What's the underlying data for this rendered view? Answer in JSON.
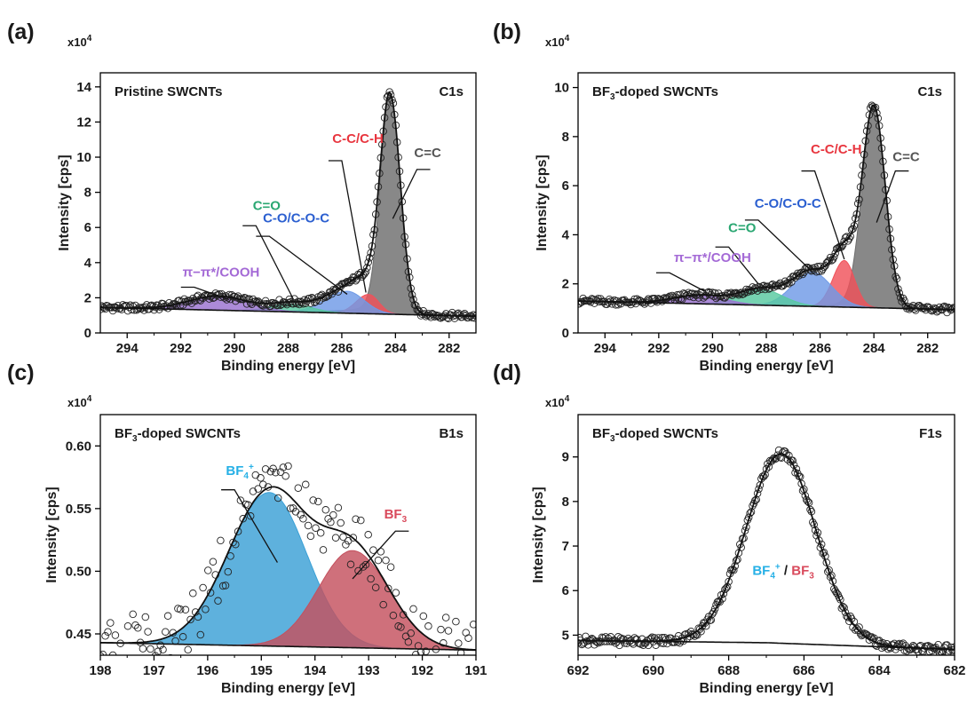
{
  "chart_data": [
    {
      "panel": "(a)",
      "type": "line",
      "subtype": "xps_fit",
      "sample": "Pristine SWCNTs",
      "core_level": "C1s",
      "xlabel": "Binding energy [eV]",
      "ylabel": "Intensity [cps]",
      "y_multiplier": "x10",
      "y_multiplier_exp": "4",
      "x_range": [
        295,
        281
      ],
      "x_reversed": true,
      "y_range": [
        0,
        14.8
      ],
      "x_ticks": [
        294,
        292,
        290,
        288,
        286,
        284,
        282
      ],
      "y_ticks": [
        0,
        2,
        4,
        6,
        8,
        10,
        12,
        14
      ],
      "baseline": [
        [
          295,
          1.45
        ],
        [
          281,
          0.95
        ]
      ],
      "peaks": [
        {
          "name": "C=C",
          "label_parts": [
            [
              "C=C",
              ""
            ]
          ],
          "center": 284.2,
          "height": 12.4,
          "wl": 0.42,
          "wr": 0.45,
          "tail": 1.3,
          "color": "#6e6e6e",
          "label_color": "#555555",
          "label_at": [
            282.8,
            10.0
          ],
          "line_from": [
            283.2,
            9.3
          ],
          "line_to": [
            284.1,
            6.5
          ]
        },
        {
          "name": "C-C/C-H",
          "label_parts": [
            [
              "C-C/C-H",
              ""
            ]
          ],
          "center": 285.0,
          "height": 1.1,
          "wl": 0.55,
          "wr": 0.45,
          "tail": 0,
          "color": "#f0525a",
          "label_color": "#e8363f",
          "label_at": [
            285.4,
            10.8
          ],
          "line_from": [
            286.0,
            9.8
          ],
          "line_to": [
            285.1,
            2.3
          ]
        },
        {
          "name": "C-O/C-O-C",
          "label_parts": [
            [
              "C-O/C-O-C",
              ""
            ]
          ],
          "center": 285.8,
          "height": 1.25,
          "wl": 0.95,
          "wr": 0.75,
          "tail": 0,
          "color": "#6f9ae6",
          "label_color": "#2b5fd0",
          "label_at": [
            287.7,
            6.3
          ],
          "line_from": [
            288.7,
            5.5
          ],
          "line_to": [
            285.8,
            2.2
          ]
        },
        {
          "name": "C=O",
          "label_parts": [
            [
              "C=O",
              ""
            ]
          ],
          "center": 287.9,
          "height": 0.45,
          "wl": 0.9,
          "wr": 0.9,
          "tail": 0,
          "color": "#58c9a0",
          "label_color": "#2aa772",
          "label_at": [
            288.8,
            7.0
          ],
          "line_from": [
            289.2,
            6.1
          ],
          "line_to": [
            287.8,
            1.9
          ]
        },
        {
          "name": "π−π*/COOH",
          "label_parts": [
            [
              "π−π*/",
              ""
            ],
            [
              "COOH",
              ""
            ]
          ],
          "center": 290.6,
          "height": 0.8,
          "wl": 1.3,
          "wr": 1.3,
          "tail": 0,
          "color": "#9a72cf",
          "label_color": "#a46ad6",
          "label_at": [
            290.5,
            3.2
          ],
          "line_from": [
            291.5,
            2.6
          ],
          "line_to": [
            290.2,
            1.9
          ]
        }
      ]
    },
    {
      "panel": "(b)",
      "type": "line",
      "subtype": "xps_fit",
      "sample": "BF3-doped SWCNTs",
      "sample_parts": [
        [
          "BF",
          ""
        ],
        [
          "3",
          "sub"
        ],
        [
          "-doped SWCNTs",
          ""
        ]
      ],
      "core_level": "C1s",
      "xlabel": "Binding energy [eV]",
      "ylabel": "Intensity [cps]",
      "y_multiplier": "x10",
      "y_multiplier_exp": "4",
      "x_range": [
        295,
        281
      ],
      "x_reversed": true,
      "y_range": [
        0,
        10.6
      ],
      "x_ticks": [
        294,
        292,
        290,
        288,
        286,
        284,
        282
      ],
      "y_ticks": [
        0,
        2,
        4,
        6,
        8,
        10
      ],
      "baseline": [
        [
          295,
          1.3
        ],
        [
          281,
          0.95
        ]
      ],
      "peaks": [
        {
          "name": "C=C",
          "label_parts": [
            [
              "C=C",
              ""
            ]
          ],
          "center": 284.0,
          "height": 8.2,
          "wl": 0.5,
          "wr": 0.5,
          "tail": 1.0,
          "color": "#6e6e6e",
          "label_color": "#555555",
          "label_at": [
            282.8,
            7.0
          ],
          "line_from": [
            283.2,
            6.6
          ],
          "line_to": [
            283.9,
            4.5
          ]
        },
        {
          "name": "C-C/C-H",
          "label_parts": [
            [
              "C-C/C-H",
              ""
            ]
          ],
          "center": 285.1,
          "height": 1.9,
          "wl": 0.5,
          "wr": 0.45,
          "tail": 0,
          "color": "#f0525a",
          "label_color": "#e8363f",
          "label_at": [
            285.4,
            7.3
          ],
          "line_from": [
            286.2,
            6.6
          ],
          "line_to": [
            285.1,
            3.0
          ]
        },
        {
          "name": "C-O/C-O-C",
          "label_parts": [
            [
              "C-O/C-O-C",
              ""
            ]
          ],
          "center": 286.3,
          "height": 1.4,
          "wl": 0.85,
          "wr": 0.85,
          "tail": 0,
          "color": "#6f9ae6",
          "label_color": "#2b5fd0",
          "label_at": [
            287.2,
            5.1
          ],
          "line_from": [
            288.3,
            4.6
          ],
          "line_to": [
            286.3,
            2.5
          ]
        },
        {
          "name": "C=O",
          "label_parts": [
            [
              "C=O",
              ""
            ]
          ],
          "center": 288.2,
          "height": 0.65,
          "wl": 0.95,
          "wr": 0.95,
          "tail": 0,
          "color": "#58c9a0",
          "label_color": "#2aa772",
          "label_at": [
            288.9,
            4.1
          ],
          "line_from": [
            289.4,
            3.5
          ],
          "line_to": [
            288.3,
            2.0
          ]
        },
        {
          "name": "π−π*/COOH",
          "label_parts": [
            [
              "π−π*/",
              ""
            ],
            [
              "COOH",
              ""
            ]
          ],
          "center": 290.5,
          "height": 0.35,
          "wl": 1.1,
          "wr": 1.1,
          "tail": 0,
          "color": "#9a72cf",
          "label_color": "#a46ad6",
          "label_at": [
            290.0,
            2.9
          ],
          "line_from": [
            291.6,
            2.45
          ],
          "line_to": [
            290.3,
            1.7
          ]
        }
      ]
    },
    {
      "panel": "(c)",
      "type": "line",
      "subtype": "xps_fit",
      "sample": "BF3-doped SWCNTs",
      "sample_parts": [
        [
          "BF",
          ""
        ],
        [
          "3",
          "sub"
        ],
        [
          "-doped SWCNTs",
          ""
        ]
      ],
      "core_level": "B1s",
      "xlabel": "Binding energy [eV]",
      "ylabel": "Intensity [cps]",
      "y_multiplier": "x10",
      "y_multiplier_exp": "4",
      "x_range": [
        198,
        191
      ],
      "x_reversed": true,
      "y_range": [
        0.433,
        0.625
      ],
      "x_ticks": [
        198,
        197,
        196,
        195,
        194,
        193,
        192,
        191
      ],
      "y_ticks": [
        0.45,
        0.5,
        0.55,
        0.6
      ],
      "y_tick_labels": [
        "0.45",
        "0.50",
        "0.55",
        "0.60"
      ],
      "baseline": [
        [
          198,
          0.443
        ],
        [
          191,
          0.437
        ]
      ],
      "peaks": [
        {
          "name": "BF4+",
          "label_parts": [
            [
              "BF",
              ""
            ],
            [
              "4",
              "sub"
            ],
            [
              "+",
              "sup"
            ]
          ],
          "center": 194.85,
          "height": 0.1225,
          "wl": 0.9,
          "wr": 0.82,
          "tail": 0,
          "color": "#3aa0d6",
          "label_color": "#26b0e6",
          "label_at": [
            195.4,
            0.577
          ],
          "line_from": [
            195.5,
            0.565
          ],
          "line_to": [
            194.7,
            0.507
          ]
        },
        {
          "name": "BF3",
          "label_parts": [
            [
              "BF",
              ""
            ],
            [
              "3",
              "sub"
            ]
          ],
          "center": 193.3,
          "height": 0.0775,
          "wl": 0.75,
          "wr": 0.8,
          "tail": 0,
          "color": "#c4505e",
          "label_color": "#d94a5c",
          "label_at": [
            192.5,
            0.542
          ],
          "line_from": [
            192.5,
            0.532
          ],
          "line_to": [
            193.3,
            0.494
          ]
        }
      ]
    },
    {
      "panel": "(d)",
      "type": "line",
      "subtype": "xps_fit",
      "sample": "BF3-doped SWCNTs",
      "sample_parts": [
        [
          "BF",
          ""
        ],
        [
          "3",
          "sub"
        ],
        [
          "-doped SWCNTs",
          ""
        ]
      ],
      "core_level": "F1s",
      "xlabel": "Binding energy [eV]",
      "ylabel": "Intensity [cps]",
      "y_multiplier": "x10",
      "y_multiplier_exp": "4",
      "x_range": [
        692,
        682
      ],
      "x_reversed": true,
      "y_range": [
        4.55,
        9.95
      ],
      "x_ticks": [
        692,
        690,
        688,
        686,
        684,
        682
      ],
      "y_ticks": [
        5,
        6,
        7,
        8,
        9
      ],
      "baseline": [
        [
          692,
          4.88
        ],
        [
          687,
          4.83
        ],
        [
          682,
          4.68
        ]
      ],
      "peaks": [
        {
          "name": "BF4+ / BF3",
          "center": 686.6,
          "height": 4.25,
          "wl": 1.1,
          "wr": 1.08,
          "tail": 0,
          "outline_only": true
        }
      ],
      "annotation": {
        "parts": [
          [
            "BF",
            "",
            "#26b0e6"
          ],
          [
            "4",
            "sub",
            "#26b0e6"
          ],
          [
            "+",
            "sup",
            "#26b0e6"
          ],
          [
            " / ",
            "",
            "#1a1a1a"
          ],
          [
            "BF",
            "",
            "#d94a5c"
          ],
          [
            "3",
            "sub",
            "#d94a5c"
          ]
        ],
        "at": [
          686.55,
          6.35
        ]
      }
    }
  ]
}
